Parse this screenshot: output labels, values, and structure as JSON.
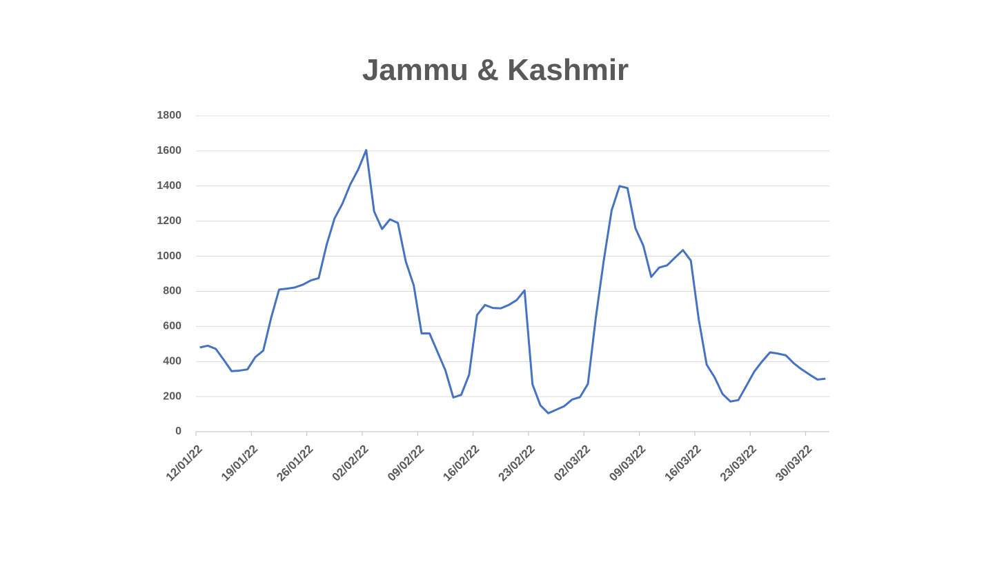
{
  "chart_data": {
    "type": "line",
    "title": "Jammu & Kashmir",
    "categories": [
      "12/01/22",
      null,
      null,
      null,
      null,
      null,
      null,
      "19/01/22",
      null,
      null,
      null,
      null,
      null,
      null,
      "26/01/22",
      null,
      null,
      null,
      null,
      null,
      null,
      "02/02/22",
      null,
      null,
      null,
      null,
      null,
      null,
      "09/02/22",
      null,
      null,
      null,
      null,
      null,
      null,
      "16/02/22",
      null,
      null,
      null,
      null,
      null,
      null,
      "23/02/22",
      null,
      null,
      null,
      null,
      null,
      null,
      "02/03/22",
      null,
      null,
      null,
      null,
      null,
      null,
      "09/03/22",
      null,
      null,
      null,
      null,
      null,
      null,
      "16/03/22",
      null,
      null,
      null,
      null,
      null,
      null,
      "23/03/22",
      null,
      null,
      null,
      null,
      null,
      null,
      "30/03/22",
      null,
      null
    ],
    "values": [
      480,
      490,
      472,
      410,
      345,
      348,
      355,
      425,
      462,
      650,
      810,
      815,
      822,
      838,
      862,
      875,
      1065,
      1215,
      1300,
      1410,
      1495,
      1605,
      1255,
      1155,
      1210,
      1190,
      970,
      835,
      560,
      560,
      455,
      350,
      195,
      210,
      325,
      665,
      722,
      705,
      703,
      722,
      750,
      805,
      270,
      150,
      105,
      125,
      145,
      183,
      197,
      272,
      650,
      975,
      1262,
      1400,
      1388,
      1160,
      1060,
      882,
      935,
      948,
      992,
      1035,
      975,
      640,
      382,
      310,
      215,
      172,
      180,
      260,
      342,
      400,
      452,
      445,
      435,
      390,
      355,
      325,
      297,
      302
    ],
    "color": "#4472c4",
    "ylim": [
      0,
      1800
    ],
    "yticks": [
      0,
      200,
      400,
      600,
      800,
      1000,
      1200,
      1400,
      1600,
      1800
    ],
    "grid": true
  }
}
